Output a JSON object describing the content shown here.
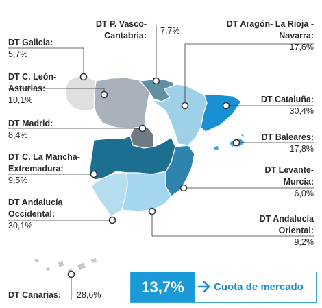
{
  "chart_data": {
    "type": "choropleth-map",
    "title": "",
    "metric_label": "Cuota de mercado",
    "total": {
      "value": "13,7%",
      "label": "Cuota de mercado"
    },
    "regions": [
      {
        "id": "galicia",
        "line1": "DT Galicia:",
        "line2": "",
        "value": "5,7%",
        "share": 5.7,
        "fill": "#dedfe0"
      },
      {
        "id": "leon",
        "line1": "DT C. León-",
        "line2": "Asturias:",
        "value": "10,1%",
        "share": 10.1,
        "fill": "#a8b2bb"
      },
      {
        "id": "vasco",
        "line1": "DT P. Vasco-",
        "line2": "Cantabria:",
        "value": "7,7%",
        "share": 7.7,
        "fill": "#5f90a5"
      },
      {
        "id": "aragon",
        "line1": "DT Aragón- La Rioja -",
        "line2": "Navarra:",
        "value": "17,6%",
        "share": 17.6,
        "fill": "#9ed0e8"
      },
      {
        "id": "cataluna",
        "line1": "DT Cataluña:",
        "line2": "",
        "value": "30,4%",
        "share": 30.4,
        "fill": "#1a90d4"
      },
      {
        "id": "madrid",
        "line1": "DT Madrid:",
        "line2": "",
        "value": "8,4%",
        "share": 8.4,
        "fill": "#6f7a82"
      },
      {
        "id": "baleares",
        "line1": "DT Baleares:",
        "line2": "",
        "value": "17,8%",
        "share": 17.8,
        "fill": "#3ea6dd"
      },
      {
        "id": "mancha",
        "line1": "DT C. La Mancha-",
        "line2": "Extremadura:",
        "value": "9,5%",
        "share": 9.5,
        "fill": "#1d6f91"
      },
      {
        "id": "levante",
        "line1": "DT Levante-",
        "line2": "Murcia:",
        "value": "6,0%",
        "share": 6.0,
        "fill": "#2f84ad"
      },
      {
        "id": "andocc",
        "line1": "DT Andalucía",
        "line2": "Occidental:",
        "value": "30,1%",
        "share": 30.1,
        "fill": "#b6dcf0"
      },
      {
        "id": "andori",
        "line1": "DT Andalucía",
        "line2": "Oriental:",
        "value": "9,2%",
        "share": 9.2,
        "fill": "#a4d6f0"
      },
      {
        "id": "canarias",
        "line1": "DT Canarias:",
        "line2": "",
        "value": "28,6%",
        "share": 28.6,
        "fill": "#c4c8cc"
      }
    ]
  }
}
